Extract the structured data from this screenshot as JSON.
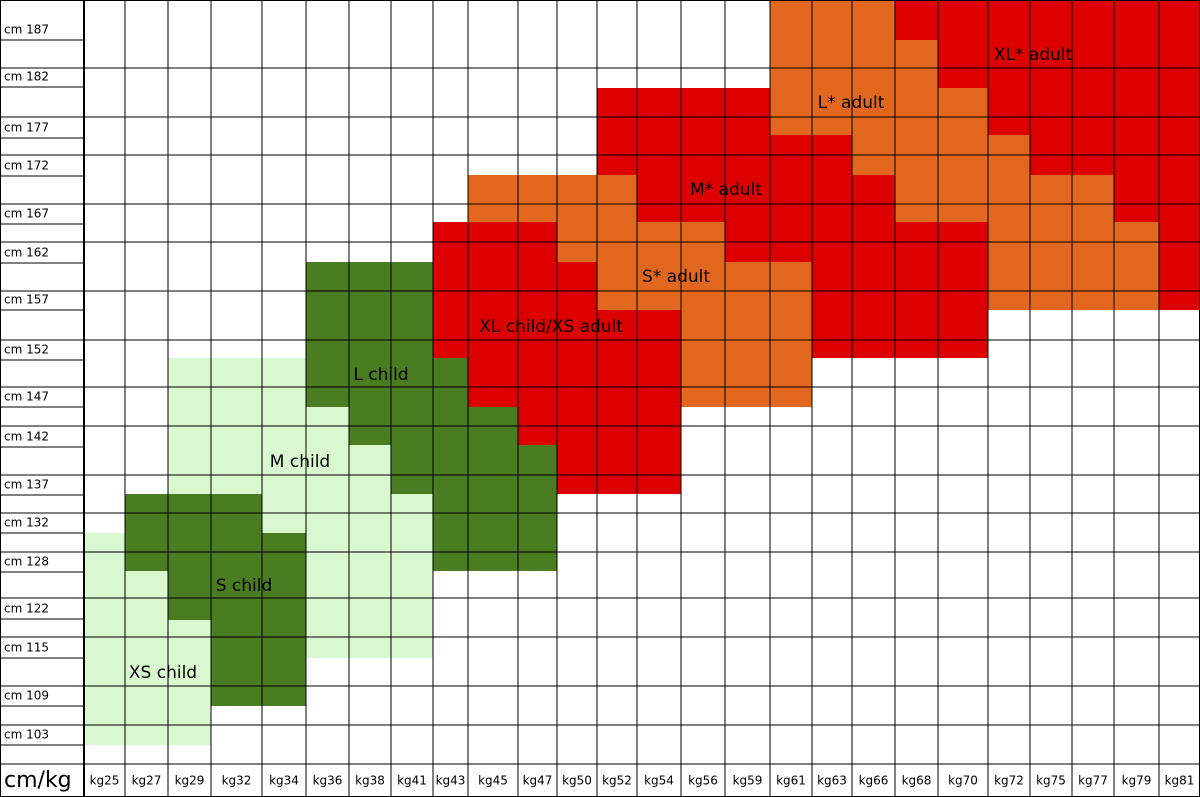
{
  "corner": "cm/kg",
  "row_labels": [
    "cm 187",
    "cm 182",
    "cm 177",
    "cm 172",
    "cm 167",
    "cm 162",
    "cm 157",
    "cm 152",
    "cm 147",
    "cm 142",
    "cm 137",
    "cm 132",
    "cm 128",
    "cm 122",
    "cm 115",
    "cm 109",
    "cm 103"
  ],
  "column_labels": [
    "kg25",
    "kg27",
    "kg29",
    "kg32",
    "kg34",
    "kg36",
    "kg38",
    "kg41",
    "kg43",
    "kg45",
    "kg47",
    "kg50",
    "kg52",
    "kg54",
    "kg56",
    "kg59",
    "kg61",
    "kg63",
    "kg66",
    "kg68",
    "kg70",
    "kg72",
    "kg75",
    "kg77",
    "kg79",
    "kg81"
  ],
  "regions": [
    {
      "label": "XS child"
    },
    {
      "label": "S child"
    },
    {
      "label": "M child"
    },
    {
      "label": "L child"
    },
    {
      "label": "XL child/XS adult"
    },
    {
      "label": "S* adult"
    },
    {
      "label": "M* adult"
    },
    {
      "label": "L* adult"
    },
    {
      "label": "XL* adult"
    }
  ]
}
